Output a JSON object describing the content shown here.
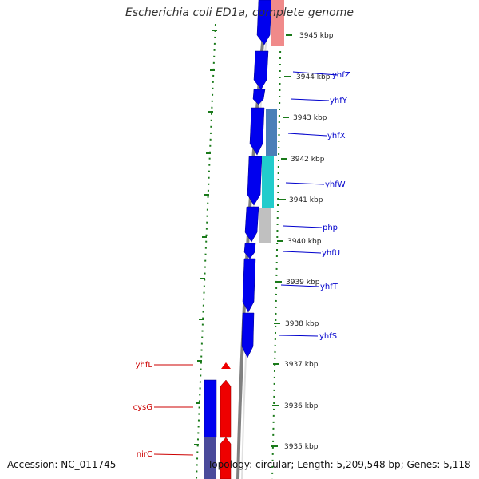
{
  "title": "Escherichia coli ED1a, complete genome",
  "footer": {
    "accession": "Accession: NC_011745",
    "summary": "Topology: circular; Length: 5,209,548 bp; Genes: 5,118"
  },
  "colors": {
    "forward_gene": "#0000ee",
    "reverse_gene": "#ee0000",
    "kbp_tick": "#1a7a1a",
    "forward_label": "#0000cc",
    "reverse_label": "#cc0000",
    "backbone": "#808080"
  },
  "kbp_labels": [
    "3945 kbp",
    "3944 kbp",
    "3943 kbp",
    "3942 kbp",
    "3941 kbp",
    "3940 kbp",
    "3939 kbp",
    "3938 kbp",
    "3937 kbp",
    "3936 kbp",
    "3935 kbp"
  ],
  "forward_genes": [
    "yhfZ",
    "yhfY",
    "yhfX",
    "yhfW",
    "php",
    "yhfU",
    "yhfT",
    "yhfS"
  ],
  "reverse_genes": [
    "yhfL",
    "cysG",
    "nirC"
  ]
}
